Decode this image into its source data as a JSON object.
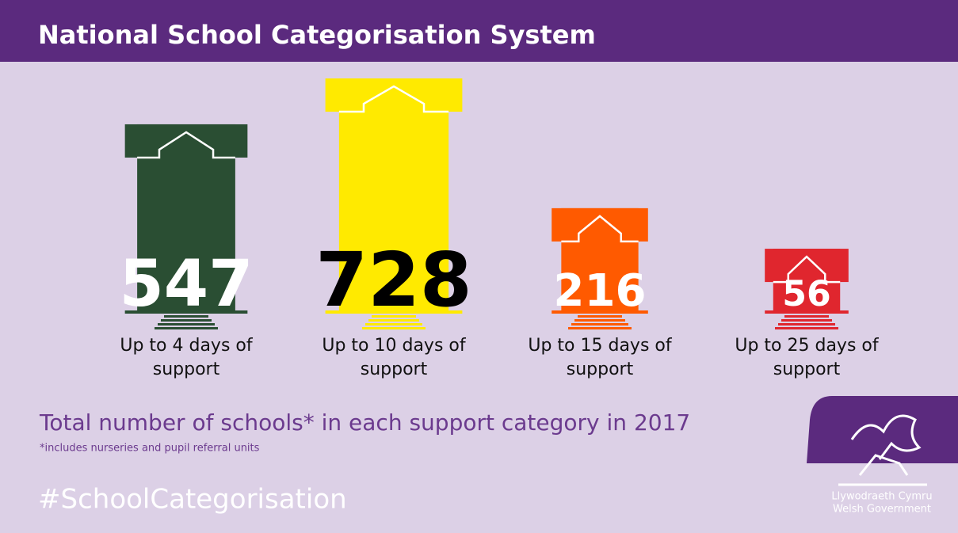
{
  "chart_data": {
    "type": "bar",
    "title": "National School Categorisation System",
    "categories": [
      "Up to 4 days of support",
      "Up to 10 days of support",
      "Up to 15 days of support",
      "Up to 25 days of support"
    ],
    "values": [
      547,
      728,
      216,
      56
    ],
    "colors": [
      "#2a4e33",
      "#ffea00",
      "#ff5a00",
      "#e0262e"
    ],
    "label_colors": [
      "#ffffff",
      "#000000",
      "#ffffff",
      "#ffffff"
    ],
    "subtitle": "Total number of schools* in each support category in 2017",
    "footnote": "*includes nurseries and pupil referral units",
    "hashtag": "#SchoolCategorisation",
    "logo": [
      "Llywodraeth Cymru",
      "Welsh Government"
    ]
  }
}
